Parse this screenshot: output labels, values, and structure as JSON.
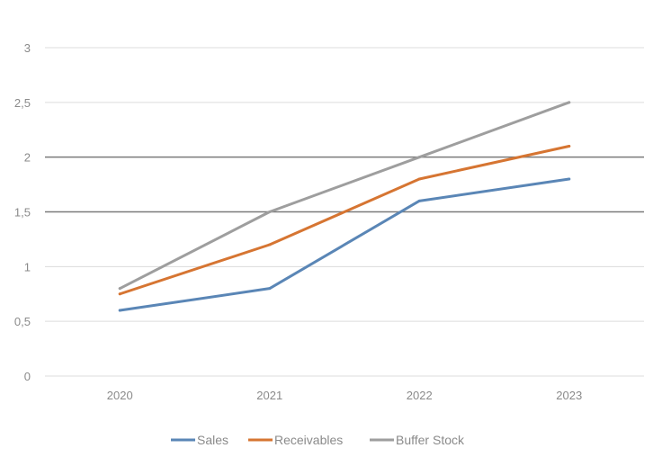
{
  "chart_data": {
    "type": "line",
    "categories": [
      "2020",
      "2021",
      "2022",
      "2023"
    ],
    "y_ticks": [
      "0",
      "0,5",
      "1",
      "1,5",
      "2",
      "2,5",
      "3"
    ],
    "ylim": [
      0,
      3
    ],
    "grid": true,
    "legend_position": "bottom",
    "series": [
      {
        "name": "Sales",
        "values": [
          0.6,
          0.8,
          1.6,
          1.8
        ],
        "color": "#5a86b6"
      },
      {
        "name": "Receivables",
        "values": [
          0.75,
          1.2,
          1.8,
          2.1
        ],
        "color": "#d67532"
      },
      {
        "name": "Buffer Stock",
        "values": [
          0.8,
          1.5,
          2.0,
          2.5
        ],
        "color": "#9e9e9e"
      }
    ]
  }
}
